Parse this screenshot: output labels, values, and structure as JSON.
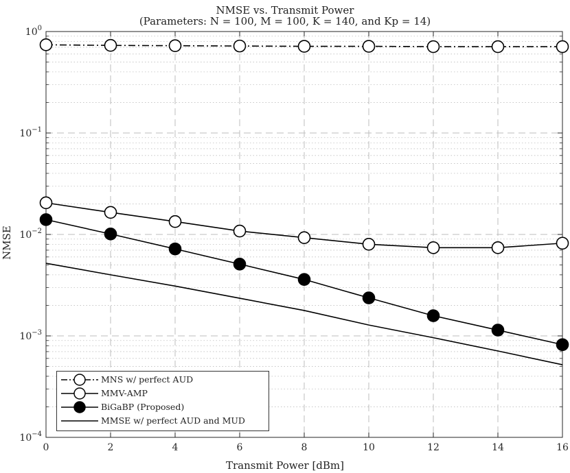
{
  "chart_data": {
    "type": "line",
    "title": "NMSE vs. Transmit Power",
    "subtitle": "(Parameters: N = 100, M = 100, K = 140, and Kp = 14)",
    "xlabel": "Transmit Power [dBm]",
    "ylabel": "NMSE",
    "xlim": [
      0,
      16
    ],
    "ylim": [
      0.0001,
      1
    ],
    "yscale": "log",
    "grid": true,
    "legend_position": "bottom-left",
    "x_ticks": [
      "0",
      "2",
      "4",
      "6",
      "8",
      "10",
      "12",
      "14",
      "16"
    ],
    "y_ticks": [
      {
        "base": "10",
        "exp": "0"
      },
      {
        "base": "10",
        "exp": "−1"
      },
      {
        "base": "10",
        "exp": "−2"
      },
      {
        "base": "10",
        "exp": "−3"
      },
      {
        "base": "10",
        "exp": "−4"
      }
    ],
    "x": [
      0,
      2,
      4,
      6,
      8,
      10,
      12,
      14,
      16
    ],
    "series": [
      {
        "name": "MNS w/ perfect AUD",
        "line": "dashdot",
        "marker": "open-circle",
        "values": [
          0.74,
          0.73,
          0.725,
          0.72,
          0.715,
          0.715,
          0.71,
          0.71,
          0.71
        ]
      },
      {
        "name": "MMV-AMP",
        "line": "solid",
        "marker": "open-circle",
        "values": [
          0.0205,
          0.0165,
          0.0134,
          0.0108,
          0.0093,
          0.008,
          0.0074,
          0.0074,
          0.0082
        ]
      },
      {
        "name": "BiGaBP (Proposed)",
        "line": "solid",
        "marker": "filled-circle",
        "values": [
          0.014,
          0.0101,
          0.0072,
          0.0051,
          0.0036,
          0.00237,
          0.00158,
          0.00114,
          0.00082
        ]
      },
      {
        "name": "MMSE w/ perfect AUD and MUD",
        "line": "solid",
        "marker": "none",
        "values": [
          0.0052,
          0.004,
          0.0031,
          0.00235,
          0.00178,
          0.00128,
          0.00096,
          0.00071,
          0.00052
        ]
      }
    ]
  },
  "colors": {
    "line": "#000000",
    "axis": "#262626",
    "grid": "#bdbdbd",
    "background": "#ffffff"
  }
}
